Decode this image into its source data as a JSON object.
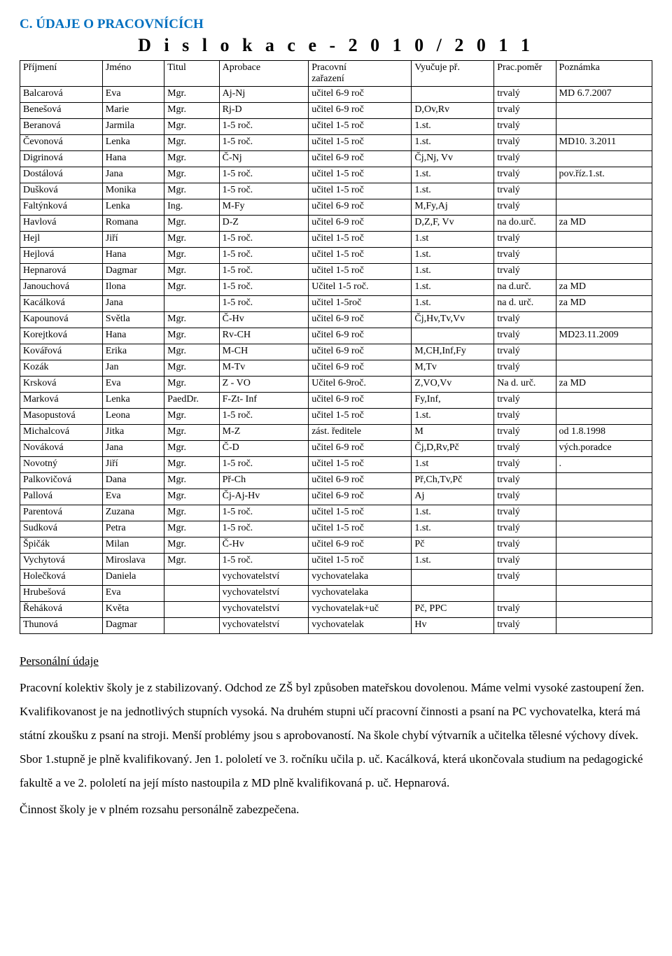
{
  "heading": "C. ÚDAJE O PRACOVNÍCÍCH",
  "title": "D i s l o k a c e  -  2 0 1 0 / 2 0 1 1",
  "columns": {
    "prijmeni": "Příjmení",
    "jmeno": "Jméno",
    "titul": "Titul",
    "aprobace": "Aprobace",
    "zarazeni_line1": "Pracovní",
    "zarazeni_line2": "zařazení",
    "vyucuje": "Vyučuje př.",
    "pomer": "Prac.poměr",
    "poznamka": "Poznámka"
  },
  "rows": [
    {
      "prijmeni": "Balcarová",
      "jmeno": "Eva",
      "titul": "Mgr.",
      "aprobace": "Aj-Nj",
      "zarazeni": "učitel  6-9 roč",
      "vyucuje": "",
      "pomer": "trvalý",
      "poznamka": "MD 6.7.2007"
    },
    {
      "prijmeni": "Benešová",
      "jmeno": "Marie",
      "titul": "Mgr.",
      "aprobace": "Rj-D",
      "zarazeni": "učitel  6-9 roč",
      "vyucuje": "D,Ov,Rv",
      "pomer": "trvalý",
      "poznamka": ""
    },
    {
      "prijmeni": "Beranová",
      "jmeno": "Jarmila",
      "titul": "Mgr.",
      "aprobace": "1-5 roč.",
      "zarazeni": "učitel 1-5 roč",
      "vyucuje": "1.st.",
      "pomer": "trvalý",
      "poznamka": ""
    },
    {
      "prijmeni": "Čevonová",
      "jmeno": "Lenka",
      "titul": "Mgr.",
      "aprobace": "1-5 roč.",
      "zarazeni": "učitel 1-5 roč",
      "vyucuje": "1.st.",
      "pomer": "trvalý",
      "poznamka": "MD10. 3.2011"
    },
    {
      "prijmeni": "Digrinová",
      "jmeno": "Hana",
      "titul": "Mgr.",
      "aprobace": "Č-Nj",
      "zarazeni": "učitel 6-9 roč",
      "vyucuje": "Čj,Nj, Vv",
      "pomer": "trvalý",
      "poznamka": ""
    },
    {
      "prijmeni": "Dostálová",
      "jmeno": "Jana",
      "titul": "Mgr.",
      "aprobace": "1-5 roč.",
      "zarazeni": "učitel 1-5 roč",
      "vyucuje": "1.st.",
      "pomer": "trvalý",
      "poznamka": "pov.říz.1.st."
    },
    {
      "prijmeni": "Dušková",
      "jmeno": "Monika",
      "titul": "Mgr.",
      "aprobace": "1-5 roč.",
      "zarazeni": "učitel 1-5 roč",
      "vyucuje": "1.st.",
      "pomer": "trvalý",
      "poznamka": ""
    },
    {
      "prijmeni": "Faltýnková",
      "jmeno": "Lenka",
      "titul": "Ing.",
      "aprobace": "M-Fy",
      "zarazeni": "učitel 6-9 roč",
      "vyucuje": "M,Fy,Aj",
      "pomer": "trvalý",
      "poznamka": ""
    },
    {
      "prijmeni": "Havlová",
      "jmeno": "Romana",
      "titul": "Mgr.",
      "aprobace": "D-Z",
      "zarazeni": "učitel 6-9 roč",
      "vyucuje": "D,Z,F, Vv",
      "pomer": "na do.urč.",
      "poznamka": "za MD"
    },
    {
      "prijmeni": "Hejl",
      "jmeno": "Jiří",
      "titul": "Mgr.",
      "aprobace": "1-5 roč.",
      "zarazeni": "učitel 1-5 roč",
      "vyucuje": "1.st",
      "pomer": "trvalý",
      "poznamka": ""
    },
    {
      "prijmeni": "Hejlová",
      "jmeno": "Hana",
      "titul": "Mgr.",
      "aprobace": "1-5 roč.",
      "zarazeni": "učitel 1-5 roč",
      "vyucuje": "1.st.",
      "pomer": "trvalý",
      "poznamka": ""
    },
    {
      "prijmeni": "Hepnarová",
      "jmeno": "Dagmar",
      "titul": "Mgr.",
      "aprobace": "1-5 roč.",
      "zarazeni": "učitel 1-5 roč",
      "vyucuje": "1.st.",
      "pomer": "trvalý",
      "poznamka": ""
    },
    {
      "prijmeni": "Janouchová",
      "jmeno": "Ilona",
      "titul": "Mgr.",
      "aprobace": "1-5 roč.",
      "zarazeni": "Učitel 1-5 roč.",
      "vyucuje": "1.st.",
      "pomer": "na d.urč.",
      "poznamka": "za MD"
    },
    {
      "prijmeni": "Kacálková",
      "jmeno": "Jana",
      "titul": "",
      "aprobace": "1-5 roč.",
      "zarazeni": "učitel 1-5roč",
      "vyucuje": "1.st.",
      "pomer": "na d. urč.",
      "poznamka": "za MD"
    },
    {
      "prijmeni": "Kapounová",
      "jmeno": "Světla",
      "titul": "Mgr.",
      "aprobace": "Č-Hv",
      "zarazeni": "učitel 6-9 roč",
      "vyucuje": "Čj,Hv,Tv,Vv",
      "pomer": "trvalý",
      "poznamka": ""
    },
    {
      "prijmeni": "Korejtková",
      "jmeno": "Hana",
      "titul": "Mgr.",
      "aprobace": "Rv-CH",
      "zarazeni": "učitel 6-9 roč",
      "vyucuje": "",
      "pomer": "trvalý",
      "poznamka": "MD23.11.2009"
    },
    {
      "prijmeni": "Kovářová",
      "jmeno": "Erika",
      "titul": "Mgr.",
      "aprobace": "M-CH",
      "zarazeni": "učitel 6-9 roč",
      "vyucuje": "M,CH,Inf,Fy",
      "pomer": "trvalý",
      "poznamka": ""
    },
    {
      "prijmeni": "Kozák",
      "jmeno": "Jan",
      "titul": "Mgr.",
      "aprobace": "M-Tv",
      "zarazeni": "učitel 6-9 roč",
      "vyucuje": "M,Tv",
      "pomer": "trvalý",
      "poznamka": ""
    },
    {
      "prijmeni": "Krsková",
      "jmeno": "Eva",
      "titul": "Mgr.",
      "aprobace": "Z - VO",
      "zarazeni": "Učitel 6-9roč.",
      "vyucuje": "Z,VO,Vv",
      "pomer": "Na d. urč.",
      "poznamka": "za MD"
    },
    {
      "prijmeni": "Marková",
      "jmeno": "Lenka",
      "titul": "PaedDr.",
      "aprobace": "F-Zt- Inf",
      "zarazeni": "učitel 6-9 roč",
      "vyucuje": "Fy,Inf,",
      "pomer": "trvalý",
      "poznamka": ""
    },
    {
      "prijmeni": "Masopustová",
      "jmeno": "Leona",
      "titul": "Mgr.",
      "aprobace": "1-5 roč.",
      "zarazeni": "učitel 1-5 roč",
      "vyucuje": "1.st.",
      "pomer": "trvalý",
      "poznamka": ""
    },
    {
      "prijmeni": "Michalcová",
      "jmeno": "Jitka",
      "titul": "Mgr.",
      "aprobace": "M-Z",
      "zarazeni": "zást. ředitele",
      "vyucuje": "M",
      "pomer": "trvalý",
      "poznamka": "od 1.8.1998"
    },
    {
      "prijmeni": "Nováková",
      "jmeno": "Jana",
      "titul": "Mgr.",
      "aprobace": "Č-D",
      "zarazeni": "učitel 6-9 roč",
      "vyucuje": "Čj,D,Rv,Pč",
      "pomer": "trvalý",
      "poznamka": "vých.poradce"
    },
    {
      "prijmeni": "Novotný",
      "jmeno": "Jiří",
      "titul": "Mgr.",
      "aprobace": "1-5 roč.",
      "zarazeni": "učitel 1-5 roč",
      "vyucuje": "1.st",
      "pomer": "trvalý",
      "poznamka": "."
    },
    {
      "prijmeni": "Palkovičová",
      "jmeno": "Dana",
      "titul": "Mgr.",
      "aprobace": "Př-Ch",
      "zarazeni": "učitel 6-9 roč",
      "vyucuje": "Př,Ch,Tv,Pč",
      "pomer": "trvalý",
      "poznamka": ""
    },
    {
      "prijmeni": "Pallová",
      "jmeno": "Eva",
      "titul": "Mgr.",
      "aprobace": "Čj-Aj-Hv",
      "zarazeni": "učitel 6-9 roč",
      "vyucuje": "Aj",
      "pomer": "trvalý",
      "poznamka": ""
    },
    {
      "prijmeni": "Parentová",
      "jmeno": "Zuzana",
      "titul": "Mgr.",
      "aprobace": "1-5 roč.",
      "zarazeni": "učitel 1-5 roč",
      "vyucuje": "1.st.",
      "pomer": "trvalý",
      "poznamka": ""
    },
    {
      "prijmeni": "Sudková",
      "jmeno": "Petra",
      "titul": "Mgr.",
      "aprobace": "1-5 roč.",
      "zarazeni": "učitel 1-5 roč",
      "vyucuje": "1.st.",
      "pomer": "trvalý",
      "poznamka": ""
    },
    {
      "prijmeni": "Špičák",
      "jmeno": "Milan",
      "titul": "Mgr.",
      "aprobace": "Č-Hv",
      "zarazeni": "učitel 6-9 roč",
      "vyucuje": "Pč",
      "pomer": "trvalý",
      "poznamka": ""
    },
    {
      "prijmeni": "Vychytová",
      "jmeno": "Miroslava",
      "titul": "Mgr.",
      "aprobace": "1-5 roč.",
      "zarazeni": "učitel 1-5 roč",
      "vyucuje": "1.st.",
      "pomer": "trvalý",
      "poznamka": ""
    },
    {
      "prijmeni": "Holečková",
      "jmeno": "Daniela",
      "titul": "",
      "aprobace": "vychovatelství",
      "zarazeni": "vychovatelaka",
      "vyucuje": "",
      "pomer": "trvalý",
      "poznamka": ""
    },
    {
      "prijmeni": "Hrubešová",
      "jmeno": "Eva",
      "titul": "",
      "aprobace": "vychovatelství",
      "zarazeni": "vychovatelaka",
      "vyucuje": "",
      "pomer": "",
      "poznamka": ""
    },
    {
      "prijmeni": "Řeháková",
      "jmeno": "Květa",
      "titul": "",
      "aprobace": "vychovatelství",
      "zarazeni": "vychovatelak+uč",
      "vyucuje": "Pč, PPC",
      "pomer": "trvalý",
      "poznamka": ""
    },
    {
      "prijmeni": "Thunová",
      "jmeno": "Dagmar",
      "titul": "",
      "aprobace": "vychovatelství",
      "zarazeni": "vychovatelak",
      "vyucuje": "Hv",
      "pomer": "trvalý",
      "poznamka": ""
    }
  ],
  "body": {
    "sub_heading": "Personální údaje",
    "para": "Pracovní kolektiv školy je z  stabilizovaný. Odchod ze ZŠ byl způsoben mateřskou dovolenou. Máme velmi vysoké zastoupení žen. Kvalifikovanost  je na jednotlivých stupních vysoká. Na druhém stupni učí pracovní činnosti a psaní na PC vychovatelka, která má státní zkoušku z psaní na stroji. Menší problémy jsou s aprobovaností. Na škole chybí výtvarník a učitelka tělesné výchovy dívek. Sbor 1.stupně je plně kvalifikovaný. Jen 1. pololetí ve 3. ročníku učila p. uč. Kacálková, která ukončovala studium na pedagogické fakultě a ve 2. pololetí na její místo nastoupila z MD plně kvalifikovaná p. uč. Hepnarová.",
    "last": "Činnost školy je v plném rozsahu personálně zabezpečena."
  }
}
